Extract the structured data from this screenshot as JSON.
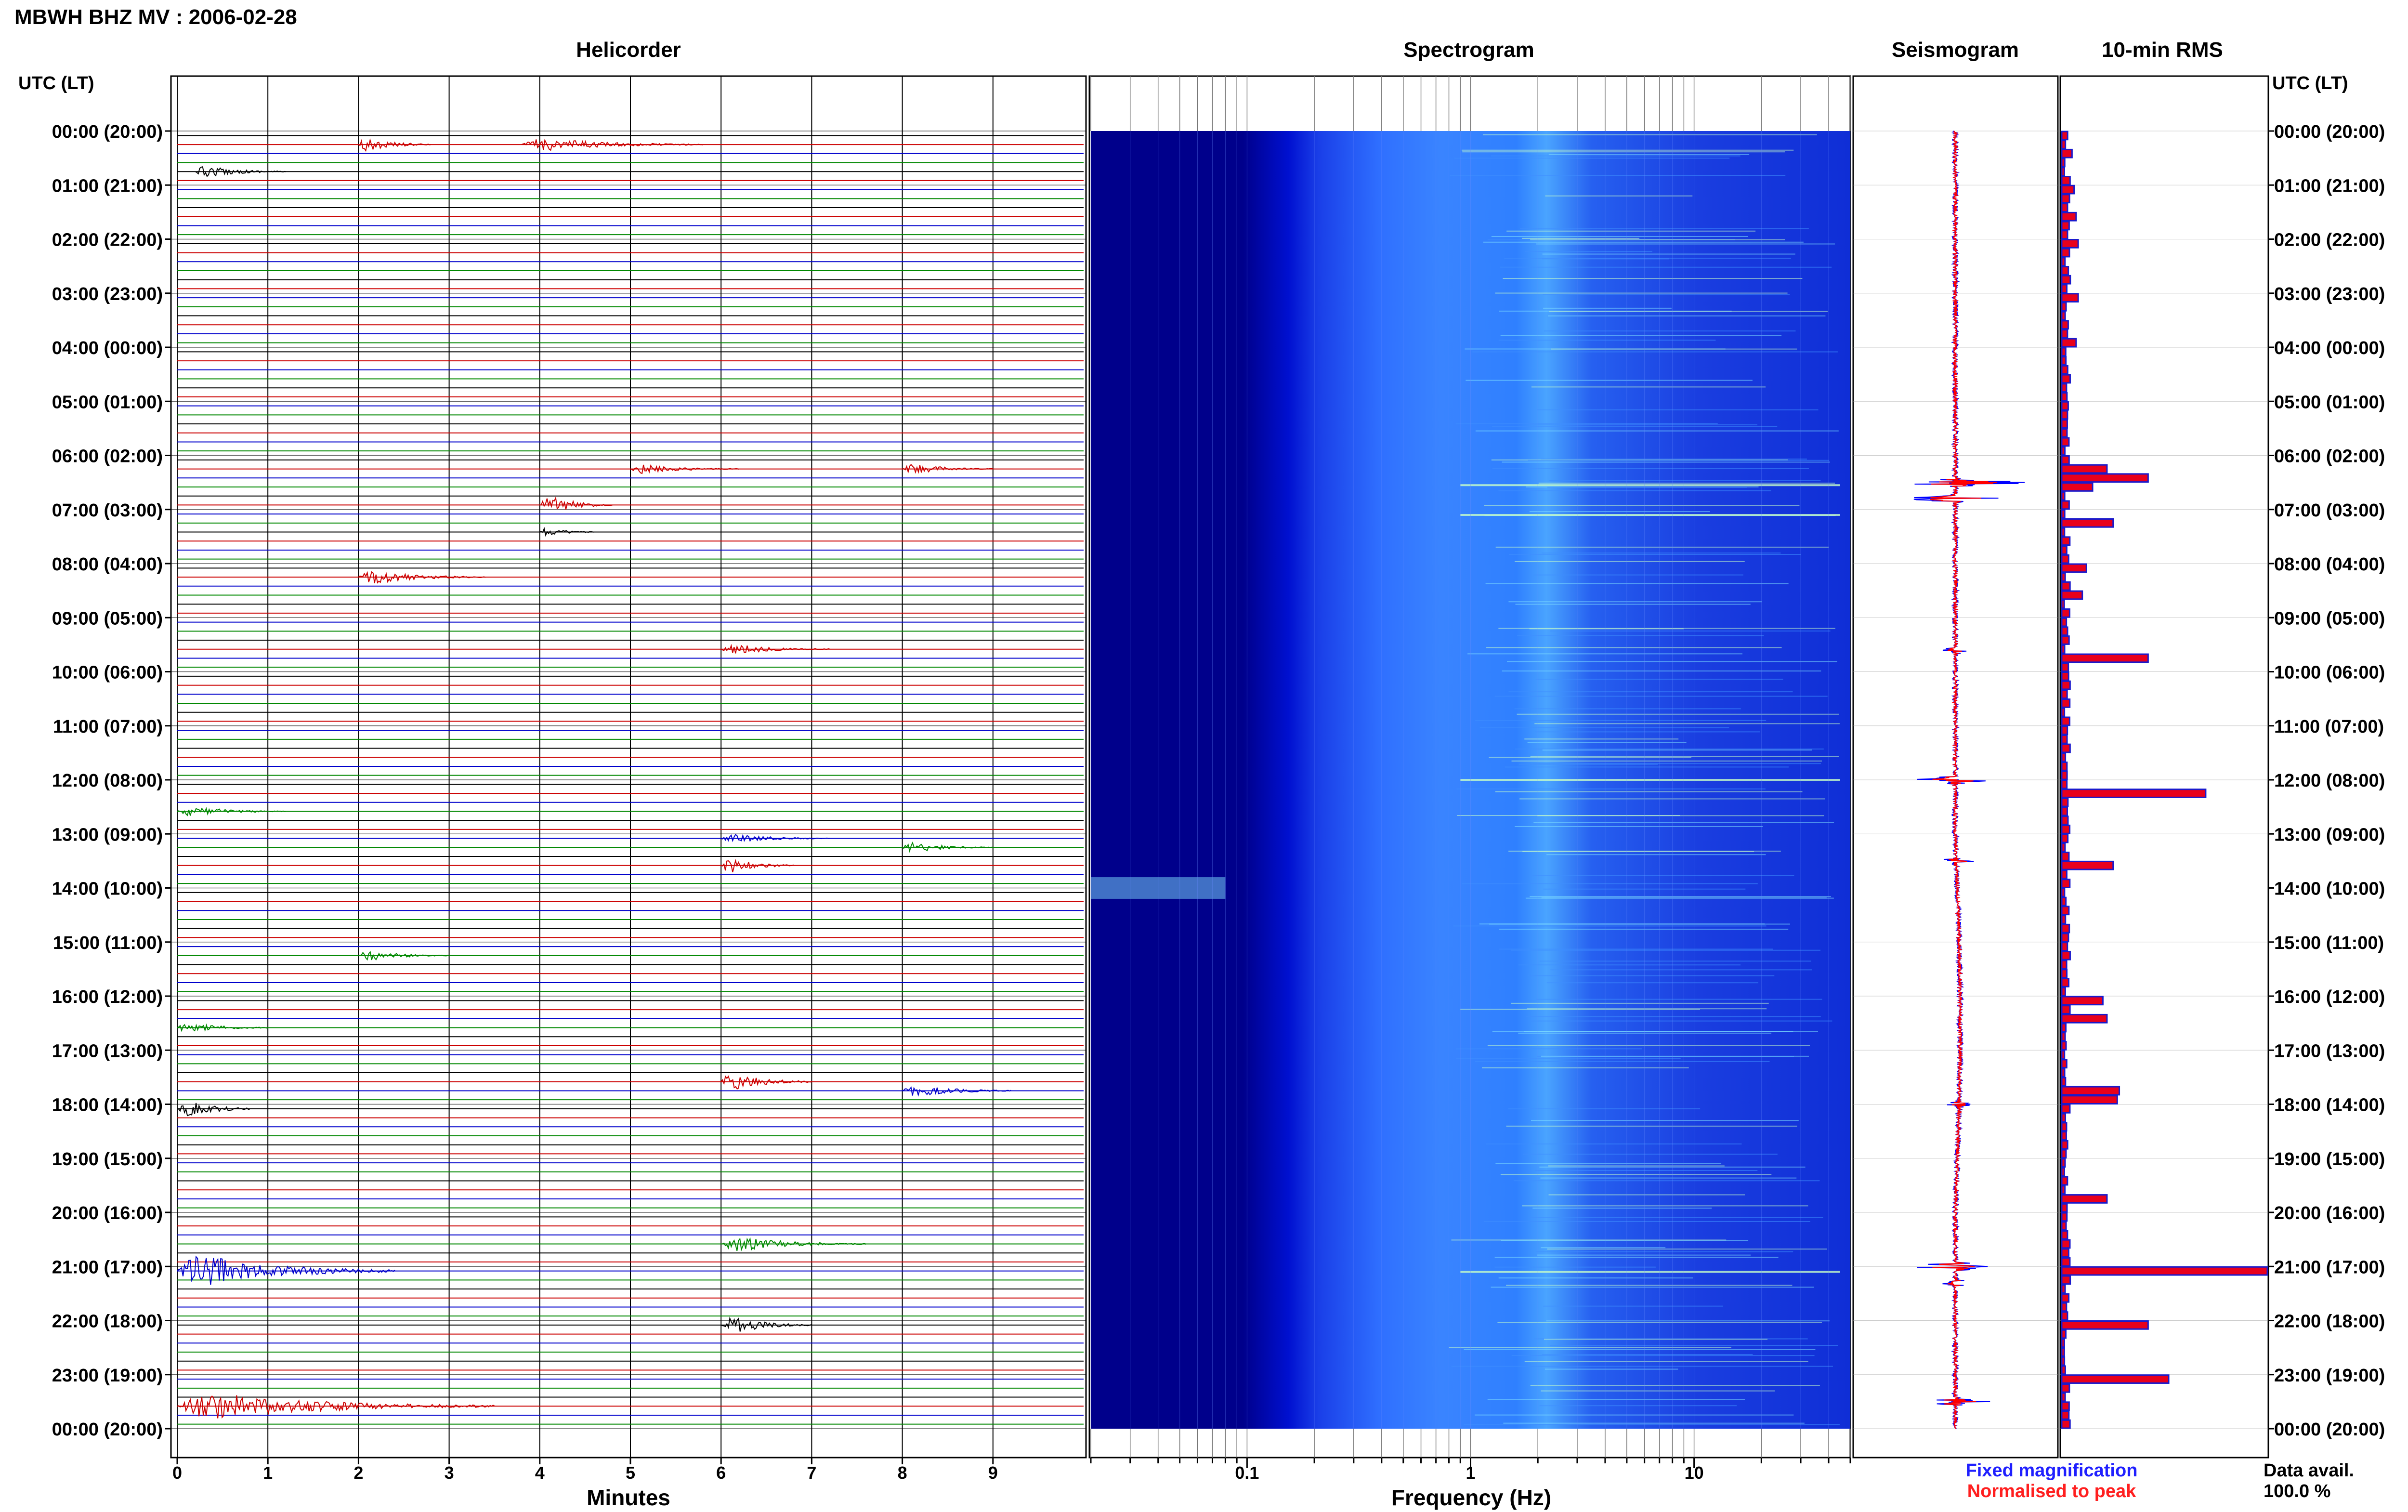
{
  "chart_data": {
    "type": "composite",
    "title": "MBWH BHZ MV : 2006-02-28",
    "time_axis": {
      "label": "UTC (LT)",
      "ticks": [
        "00:00 (20:00)",
        "01:00 (21:00)",
        "02:00 (22:00)",
        "03:00 (23:00)",
        "04:00 (00:00)",
        "05:00 (01:00)",
        "06:00 (02:00)",
        "07:00 (03:00)",
        "08:00 (04:00)",
        "09:00 (05:00)",
        "10:00 (06:00)",
        "11:00 (07:00)",
        "12:00 (08:00)",
        "13:00 (09:00)",
        "14:00 (10:00)",
        "15:00 (11:00)",
        "16:00 (12:00)",
        "17:00 (13:00)",
        "18:00 (14:00)",
        "19:00 (15:00)",
        "20:00 (16:00)",
        "21:00 (17:00)",
        "22:00 (18:00)",
        "23:00 (19:00)",
        "00:00 (20:00)"
      ]
    },
    "panels": [
      {
        "name": "Helicorder",
        "type": "helicorder",
        "xlabel": "Minutes",
        "xlim": [
          0,
          10
        ],
        "xticks": [
          0,
          1,
          2,
          3,
          4,
          5,
          6,
          7,
          8,
          9
        ],
        "line_minutes": 10,
        "trace_colors": [
          "#000000",
          "#cc0000",
          "#0000cc",
          "#008800"
        ],
        "events": [
          {
            "t": 0.67,
            "amp": 8,
            "dur": 1.0
          },
          {
            "t": 0.23,
            "amp": 9,
            "dur": 2.0
          },
          {
            "t": 0.2,
            "amp": 10,
            "dur": 0.8
          },
          {
            "t": 6.3,
            "amp": 7,
            "dur": 1.0
          },
          {
            "t": 6.25,
            "amp": 6,
            "dur": 1.2
          },
          {
            "t": 6.9,
            "amp": 14,
            "dur": 0.8
          },
          {
            "t": 7.4,
            "amp": 6,
            "dur": 0.6
          },
          {
            "t": 8.2,
            "amp": 9,
            "dur": 1.4
          },
          {
            "t": 9.6,
            "amp": 7,
            "dur": 1.2
          },
          {
            "t": 12.5,
            "amp": 7,
            "dur": 1.2
          },
          {
            "t": 13.1,
            "amp": 6,
            "dur": 1.2
          },
          {
            "t": 13.6,
            "amp": 11,
            "dur": 0.8
          },
          {
            "t": 13.3,
            "amp": 7,
            "dur": 1.0
          },
          {
            "t": 15.2,
            "amp": 7,
            "dur": 1.0
          },
          {
            "t": 16.5,
            "amp": 7,
            "dur": 1.0
          },
          {
            "t": 17.8,
            "amp": 8,
            "dur": 1.2
          },
          {
            "t": 17.6,
            "amp": 12,
            "dur": 1.0
          },
          {
            "t": 18.0,
            "amp": 14,
            "dur": 0.8
          },
          {
            "t": 20.6,
            "amp": 10,
            "dur": 1.6
          },
          {
            "t": 21.0,
            "amp": 22,
            "dur": 2.4
          },
          {
            "t": 22.1,
            "amp": 12,
            "dur": 1.0
          },
          {
            "t": 23.5,
            "amp": 18,
            "dur": 3.5
          }
        ]
      },
      {
        "name": "Spectrogram",
        "type": "heatmap",
        "xlabel": "Frequency (Hz)",
        "xscale": "log",
        "xlim": [
          0.02,
          50
        ],
        "xtick_labels": [
          "0.1",
          "1",
          "10"
        ],
        "colormap": [
          "#00008b",
          "#0000cd",
          "#1f3fff",
          "#3f8fff",
          "#7fdfff",
          "#c8ffc8",
          "#ffff60"
        ]
      },
      {
        "name": "Seismogram",
        "type": "line",
        "legend": [
          "Fixed magnification",
          "Normalised to peak"
        ],
        "colors": [
          "#0000ff",
          "#ff0000"
        ]
      },
      {
        "name": "10-min RMS",
        "type": "bar",
        "orientation": "horizontal",
        "bar_minutes": 10,
        "peaks": [
          {
            "bin": 2,
            "rel": 0.05
          },
          {
            "bin": 6,
            "rel": 0.06
          },
          {
            "bin": 9,
            "rel": 0.07
          },
          {
            "bin": 12,
            "rel": 0.08
          },
          {
            "bin": 18,
            "rel": 0.08
          },
          {
            "bin": 23,
            "rel": 0.07
          },
          {
            "bin": 37,
            "rel": 0.22
          },
          {
            "bin": 38,
            "rel": 0.42
          },
          {
            "bin": 39,
            "rel": 0.15
          },
          {
            "bin": 43,
            "rel": 0.25
          },
          {
            "bin": 48,
            "rel": 0.12
          },
          {
            "bin": 51,
            "rel": 0.1
          },
          {
            "bin": 58,
            "rel": 0.42
          },
          {
            "bin": 73,
            "rel": 0.7
          },
          {
            "bin": 81,
            "rel": 0.25
          },
          {
            "bin": 96,
            "rel": 0.2
          },
          {
            "bin": 98,
            "rel": 0.22
          },
          {
            "bin": 106,
            "rel": 0.28
          },
          {
            "bin": 107,
            "rel": 0.27
          },
          {
            "bin": 118,
            "rel": 0.22
          },
          {
            "bin": 126,
            "rel": 1.0
          },
          {
            "bin": 132,
            "rel": 0.42
          },
          {
            "bin": 138,
            "rel": 0.52
          }
        ]
      }
    ],
    "data_availability": {
      "label": "Data avail.",
      "value": "100.0 %"
    }
  }
}
